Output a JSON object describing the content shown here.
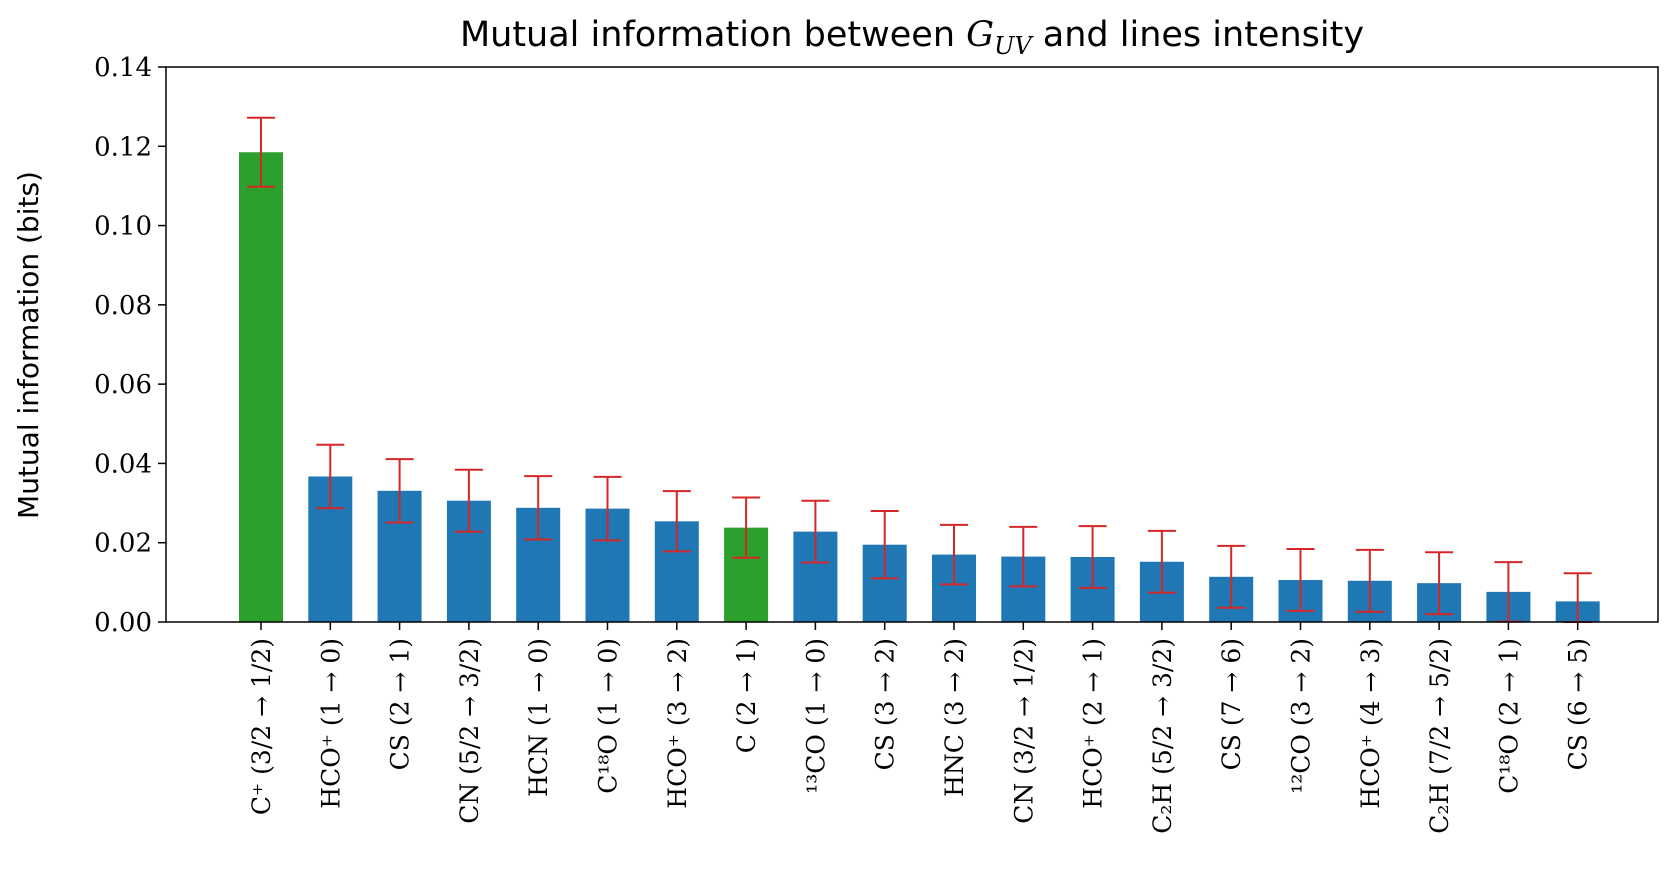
{
  "chart_data": {
    "type": "bar",
    "title": "Mutual information between G_UV and lines intensity",
    "title_parts": {
      "before": "Mutual information between ",
      "symbol": "G",
      "symbol_sub": "UV",
      "after": " and lines intensity"
    },
    "xlabel": "",
    "ylabel": "Mutual information (bits)",
    "ylim": [
      0,
      0.14
    ],
    "yticks": [
      "0.00",
      "0.02",
      "0.04",
      "0.06",
      "0.08",
      "0.10",
      "0.12",
      "0.14"
    ],
    "grid": false,
    "colors": {
      "highlight": "#2ca02c",
      "default": "#1f77b4",
      "error": "#d62728"
    },
    "categories": [
      "C⁺ (3/2 → 1/2)",
      "HCO⁺ (1 → 0)",
      "CS (2 → 1)",
      "CN (5/2 → 3/2)",
      "HCN (1 → 0)",
      "C¹⁸O (1 → 0)",
      "HCO⁺ (3 → 2)",
      "C (2 → 1)",
      "¹³CO (1 → 0)",
      "CS (3 → 2)",
      "HNC (3 → 2)",
      "CN (3/2 → 1/2)",
      "HCO⁺ (2 → 1)",
      "C₂H (5/2 → 3/2)",
      "CS (7 → 6)",
      "¹²CO (3 → 2)",
      "HCO⁺ (4 → 3)",
      "C₂H (7/2 → 5/2)",
      "C¹⁸O (2 → 1)",
      "CS (6 → 5)"
    ],
    "values": [
      0.1185,
      0.0367,
      0.0331,
      0.0306,
      0.0288,
      0.0286,
      0.0254,
      0.0238,
      0.0228,
      0.0195,
      0.017,
      0.0165,
      0.0164,
      0.0152,
      0.0114,
      0.0106,
      0.0104,
      0.0098,
      0.0076,
      0.0052
    ],
    "errors": [
      0.0087,
      0.008,
      0.008,
      0.0078,
      0.008,
      0.008,
      0.0076,
      0.0076,
      0.0078,
      0.0085,
      0.0075,
      0.0075,
      0.0078,
      0.0078,
      0.0078,
      0.0078,
      0.0078,
      0.0078,
      0.0075,
      0.0071
    ],
    "highlight": [
      0,
      7
    ]
  }
}
